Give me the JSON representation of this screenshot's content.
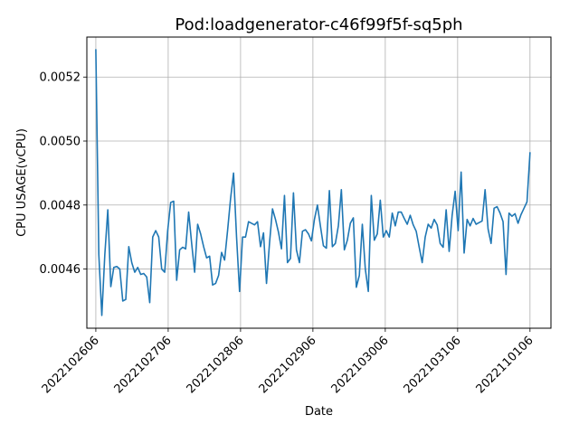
{
  "chart_data": {
    "type": "line",
    "title": "Pod:loadgenerator-c46f99f5f-sq5ph",
    "xlabel": "Date",
    "ylabel": "CPU USAGE(vCPU)",
    "x_tick_labels": [
      "2022102606",
      "2022102706",
      "2022102806",
      "2022102906",
      "2022103006",
      "2022103106",
      "2022110106"
    ],
    "y_ticks": [
      0.0046,
      0.0048,
      0.005,
      0.0052
    ],
    "y_tick_labels": [
      "0.0046",
      "0.0048",
      "0.0050",
      "0.0052"
    ],
    "ylim": [
      0.004415,
      0.005325
    ],
    "xlim_index": [
      -3,
      152
    ],
    "grid": true,
    "line_color": "#1f77b4",
    "series": [
      {
        "values": [
          0.005285,
          0.004645,
          0.004455,
          0.004645,
          0.004785,
          0.004545,
          0.004605,
          0.004608,
          0.0046,
          0.0045,
          0.004505,
          0.00467,
          0.00462,
          0.00459,
          0.004605,
          0.004583,
          0.004586,
          0.004575,
          0.004495,
          0.0047,
          0.00472,
          0.0047,
          0.0046,
          0.00459,
          0.00472,
          0.004808,
          0.004812,
          0.004565,
          0.00466,
          0.004668,
          0.004663,
          0.004778,
          0.00468,
          0.00459,
          0.00474,
          0.00471,
          0.00467,
          0.004635,
          0.00464,
          0.00455,
          0.004555,
          0.00458,
          0.004652,
          0.004628,
          0.00472,
          0.00482,
          0.0049,
          0.0047,
          0.00453,
          0.0047,
          0.0047,
          0.004748,
          0.004743,
          0.004738,
          0.004748,
          0.00467,
          0.004713,
          0.004555,
          0.00468,
          0.004788,
          0.004755,
          0.004715,
          0.004663,
          0.00483,
          0.00462,
          0.004633,
          0.004838,
          0.00466,
          0.00462,
          0.004718,
          0.004723,
          0.00471,
          0.004688,
          0.004755,
          0.0048,
          0.004735,
          0.004673,
          0.004665,
          0.004845,
          0.00467,
          0.00468,
          0.004735,
          0.004848,
          0.00466,
          0.00469,
          0.004743,
          0.00476,
          0.004543,
          0.00458,
          0.00474,
          0.0046,
          0.00453,
          0.00483,
          0.00469,
          0.00471,
          0.004815,
          0.0047,
          0.00472,
          0.0047,
          0.004775,
          0.004735,
          0.004778,
          0.004778,
          0.004758,
          0.00474,
          0.004768,
          0.004738,
          0.004718,
          0.004668,
          0.00462,
          0.0047,
          0.00474,
          0.004728,
          0.004755,
          0.004738,
          0.00468,
          0.004668,
          0.004785,
          0.004655,
          0.004768,
          0.004843,
          0.00472,
          0.004903,
          0.00465,
          0.004755,
          0.004735,
          0.004758,
          0.00474,
          0.004745,
          0.00475,
          0.004848,
          0.004725,
          0.00468,
          0.00479,
          0.004795,
          0.004775,
          0.004748,
          0.004583,
          0.004775,
          0.004765,
          0.004773,
          0.004743,
          0.00477,
          0.00479,
          0.00481,
          0.004963
        ]
      }
    ]
  }
}
